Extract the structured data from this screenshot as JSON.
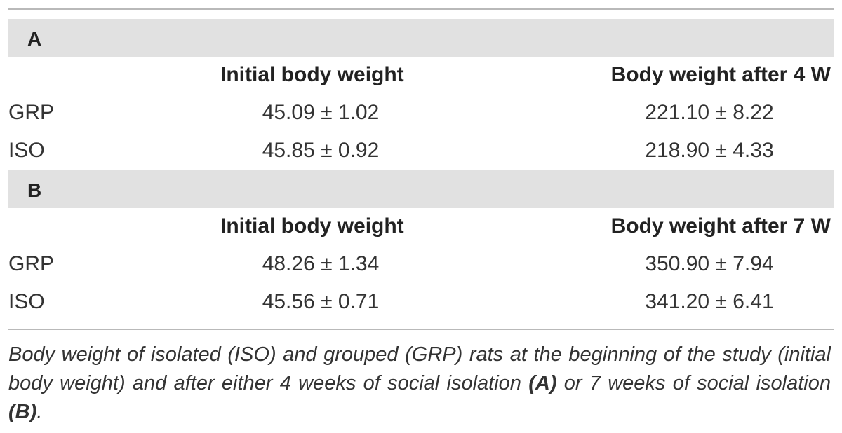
{
  "table": {
    "sections": [
      {
        "label": "A",
        "col1_header": "Initial body weight",
        "col2_header": "Body weight after 4 W",
        "rows": [
          {
            "label": "GRP",
            "initial": "45.09 ± 1.02",
            "after": "221.10 ± 8.22"
          },
          {
            "label": "ISO",
            "initial": "45.85 ± 0.92",
            "after": "218.90 ± 4.33"
          }
        ]
      },
      {
        "label": "B",
        "col1_header": "Initial body weight",
        "col2_header": "Body weight after 7 W",
        "rows": [
          {
            "label": "GRP",
            "initial": "48.26 ± 1.34",
            "after": "350.90 ± 7.94"
          },
          {
            "label": "ISO",
            "initial": "45.56 ± 0.71",
            "after": "341.20 ± 6.41"
          }
        ]
      }
    ]
  },
  "caption": {
    "part1": "Body weight of isolated (ISO) and grouped (GRP) rats at the beginning of the study (initial body weight) and after either 4 weeks of social isolation ",
    "ref_a": "(A)",
    "part2": " or 7 weeks of social isolation ",
    "ref_b": "(B)",
    "part3": "."
  }
}
